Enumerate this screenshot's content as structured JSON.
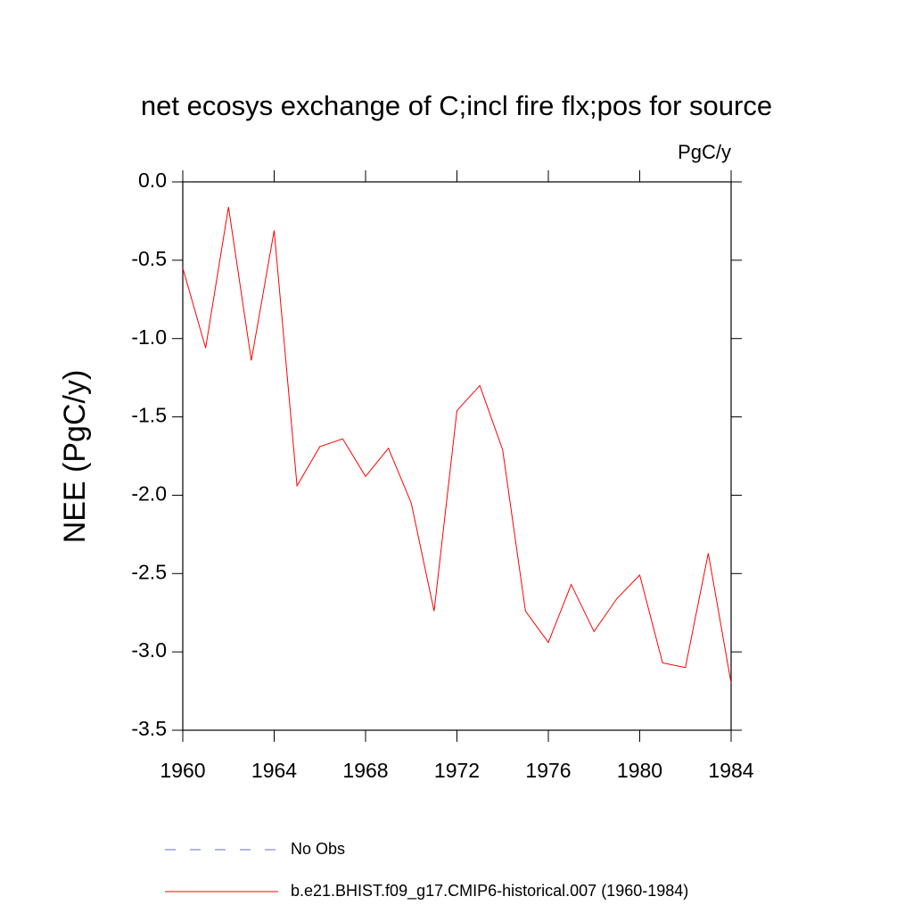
{
  "chart_data": {
    "type": "line",
    "title": "net ecosys exchange of C;incl fire flx;pos for source",
    "units_label": "PgC/y",
    "y_label": "NEE  (PgC/y)",
    "x": [
      1960,
      1961,
      1962,
      1963,
      1964,
      1965,
      1966,
      1967,
      1968,
      1969,
      1970,
      1971,
      1972,
      1973,
      1974,
      1975,
      1976,
      1977,
      1978,
      1979,
      1980,
      1981,
      1982,
      1983,
      1984
    ],
    "series": [
      {
        "name": "No Obs",
        "color": "#6a6ad0",
        "dashed": true,
        "values": [
          null,
          null,
          null,
          null,
          null,
          null,
          null,
          null,
          null,
          null,
          null,
          null,
          null,
          null,
          null,
          null,
          null,
          null,
          null,
          null,
          null,
          null,
          null,
          null,
          null
        ]
      },
      {
        "name": "b.e21.BHIST.f09_g17.CMIP6-historical.007 (1960-1984)",
        "color": "#ff0000",
        "dashed": false,
        "values": [
          -0.55,
          -1.06,
          -0.16,
          -1.14,
          -0.31,
          -1.94,
          -1.69,
          -1.64,
          -1.88,
          -1.7,
          -2.05,
          -2.74,
          -1.46,
          -1.3,
          -1.71,
          -2.74,
          -2.94,
          -2.57,
          -2.87,
          -2.66,
          -2.51,
          -3.07,
          -3.1,
          -2.37,
          -3.2
        ]
      }
    ],
    "xlim": [
      1960,
      1984
    ],
    "xticks": [
      1960,
      1964,
      1968,
      1972,
      1976,
      1980,
      1984
    ],
    "ylim": [
      -3.5,
      0.0
    ],
    "yticks": [
      {
        "value": 0,
        "label": "0.0"
      },
      -0.5,
      {
        "value": -1,
        "label": "-1.0"
      },
      -1.5,
      {
        "value": -2,
        "label": "-2.0"
      },
      -2.5,
      {
        "value": -3,
        "label": "-3.0"
      },
      -3.5
    ],
    "grid": false
  }
}
